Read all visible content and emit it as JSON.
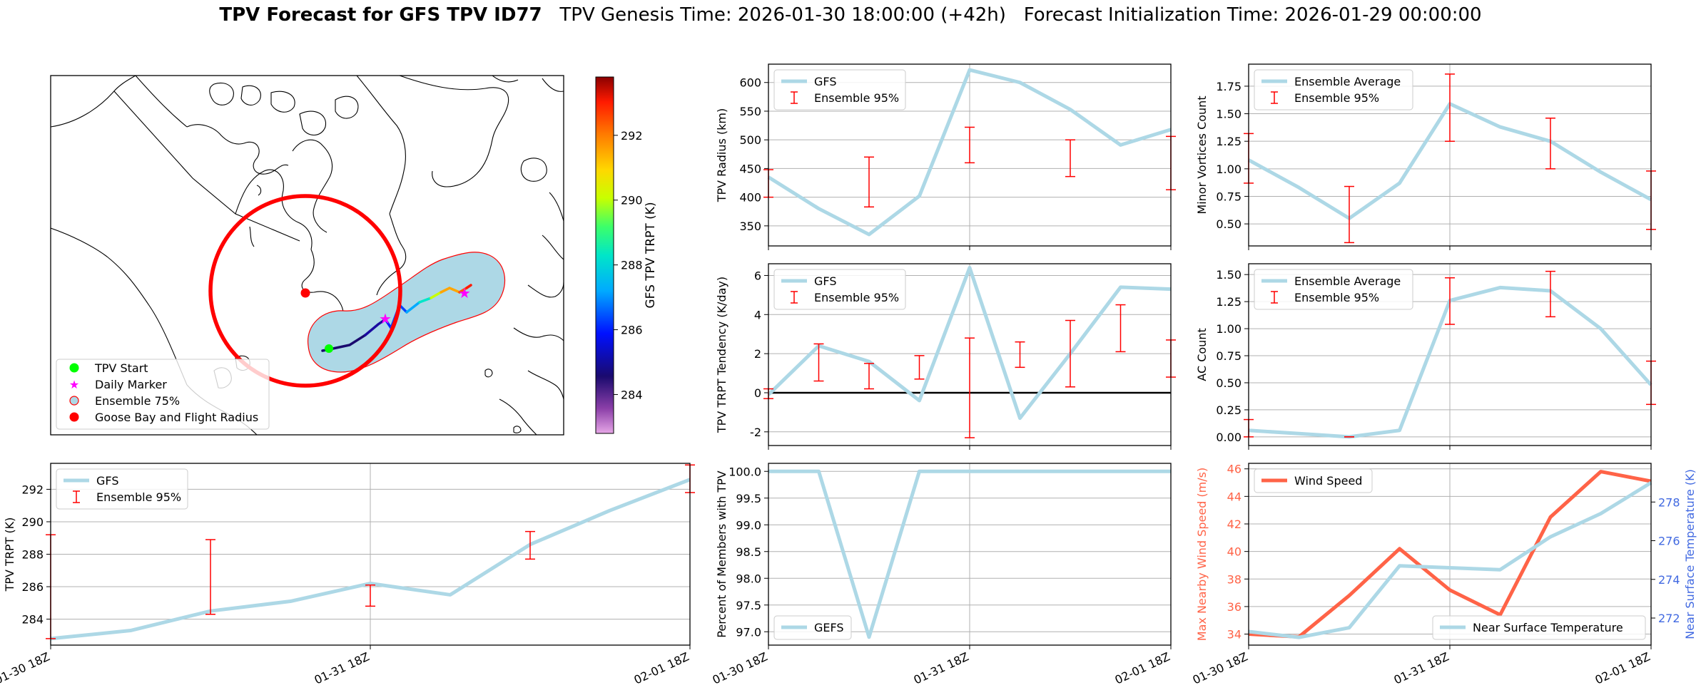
{
  "title": {
    "bold": "TPV Forecast for GFS TPV ID77",
    "rest": "TPV Genesis Time: 2026-01-30 18:00:00 (+42h)   Forecast Initialization Time: 2026-01-29 00:00:00"
  },
  "colors": {
    "line": "#add8e6",
    "error": "#ff0000",
    "wind": "#ff6347",
    "temp_axis": "#4169e1",
    "grid": "#b0b0b0"
  },
  "map": {
    "colorbar_label": "GFS TPV TRPT (K)",
    "colorbar_ticks": [
      284,
      286,
      288,
      290,
      292
    ],
    "colorbar_range": [
      282.8,
      293.8
    ],
    "legend": [
      {
        "label": "TPV Start",
        "marker": "dot",
        "color": "#00ff00"
      },
      {
        "label": "Daily Marker",
        "marker": "star",
        "color": "#ff00ff"
      },
      {
        "label": "Ensemble 75%",
        "marker": "ring",
        "color": "#add8e6"
      },
      {
        "label": "Goose Bay and Flight Radius",
        "marker": "dot",
        "color": "#ff0000"
      }
    ]
  },
  "chart_data": [
    {
      "id": "radius",
      "type": "line",
      "ylabel": "TPV Radius (km)",
      "ylim": [
        315,
        632
      ],
      "yticks": [
        350,
        400,
        450,
        500,
        550,
        600
      ],
      "legend": [
        "GFS",
        "Ensemble 95%"
      ],
      "series": [
        {
          "name": "GFS",
          "values": [
            435,
            380,
            335,
            402,
            622,
            600,
            553,
            491,
            518
          ]
        }
      ],
      "errorbars": [
        [
          0,
          400,
          448
        ],
        [
          2,
          383,
          470
        ],
        [
          4,
          460,
          522
        ],
        [
          6,
          436,
          500
        ],
        [
          8,
          413,
          506
        ]
      ]
    },
    {
      "id": "minor",
      "type": "line",
      "ylabel": "Minor Vortices Count",
      "ylim": [
        0.3,
        1.95
      ],
      "yticks": [
        0.5,
        0.75,
        1.0,
        1.25,
        1.5,
        1.75
      ],
      "ytick_labels": [
        "0.50",
        "0.75",
        "1.00",
        "1.25",
        "1.50",
        "1.75"
      ],
      "legend": [
        "Ensemble Average",
        "Ensemble 95%"
      ],
      "series": [
        {
          "name": "Ensemble Average",
          "values": [
            1.08,
            0.83,
            0.55,
            0.87,
            1.59,
            1.38,
            1.25,
            0.97,
            0.72
          ]
        }
      ],
      "errorbars": [
        [
          0,
          0.87,
          1.32
        ],
        [
          2,
          0.33,
          0.84
        ],
        [
          4,
          1.25,
          1.86
        ],
        [
          6,
          1.0,
          1.46
        ],
        [
          8,
          0.45,
          0.98
        ]
      ]
    },
    {
      "id": "tendency",
      "type": "line",
      "ylabel": "TPV TRPT Tendency (K/day)",
      "ylim": [
        -2.7,
        6.6
      ],
      "yticks": [
        -2,
        0,
        2,
        4,
        6
      ],
      "zero_line": true,
      "legend": [
        "GFS",
        "Ensemble 95%"
      ],
      "series": [
        {
          "name": "GFS",
          "values": [
            -0.1,
            2.4,
            1.6,
            -0.4,
            6.4,
            -1.3,
            2.0,
            5.4,
            5.3
          ]
        }
      ],
      "errorbars": [
        [
          0,
          -0.3,
          0.2
        ],
        [
          1,
          0.6,
          2.5
        ],
        [
          2,
          0.2,
          1.5
        ],
        [
          3,
          0.7,
          1.9
        ],
        [
          4,
          -2.3,
          2.8
        ],
        [
          5,
          1.3,
          2.6
        ],
        [
          6,
          0.3,
          3.7
        ],
        [
          7,
          2.1,
          4.5
        ],
        [
          8,
          0.8,
          2.7
        ]
      ]
    },
    {
      "id": "ac",
      "type": "line",
      "ylabel": "AC Count",
      "ylim": [
        -0.08,
        1.6
      ],
      "yticks": [
        0.0,
        0.25,
        0.5,
        0.75,
        1.0,
        1.25,
        1.5
      ],
      "ytick_labels": [
        "0.00",
        "0.25",
        "0.50",
        "0.75",
        "1.00",
        "1.25",
        "1.50"
      ],
      "legend": [
        "Ensemble Average",
        "Ensemble 95%"
      ],
      "series": [
        {
          "name": "Ensemble Average",
          "values": [
            0.06,
            0.03,
            0.0,
            0.06,
            1.26,
            1.38,
            1.35,
            1.0,
            0.48
          ]
        }
      ],
      "errorbars": [
        [
          0,
          0.0,
          0.16
        ],
        [
          2,
          0.0,
          0.0
        ],
        [
          4,
          1.04,
          1.47
        ],
        [
          6,
          1.11,
          1.53
        ],
        [
          8,
          0.3,
          0.7
        ]
      ]
    },
    {
      "id": "trpt",
      "type": "line",
      "ylabel": "TPV TRPT (K)",
      "ylim": [
        282.4,
        293.6
      ],
      "yticks": [
        284,
        286,
        288,
        290,
        292
      ],
      "legend": [
        "GFS",
        "Ensemble 95%"
      ],
      "series": [
        {
          "name": "GFS",
          "values": [
            282.8,
            283.3,
            284.5,
            285.1,
            286.2,
            285.5,
            288.6,
            290.7,
            292.6
          ]
        }
      ],
      "errorbars": [
        [
          0,
          282.8,
          289.2
        ],
        [
          2,
          284.3,
          288.9
        ],
        [
          4,
          284.8,
          286.1
        ],
        [
          6,
          287.7,
          289.4
        ],
        [
          8,
          291.8,
          293.5
        ]
      ]
    },
    {
      "id": "percent",
      "type": "line",
      "ylabel": "Percent of Members with TPV",
      "ylim": [
        96.75,
        100.15
      ],
      "yticks": [
        97.0,
        97.5,
        98.0,
        98.5,
        99.0,
        99.5,
        100.0
      ],
      "ytick_labels": [
        "97.0",
        "97.5",
        "98.0",
        "98.5",
        "99.0",
        "99.5",
        "100.0"
      ],
      "legend": [
        "GEFS"
      ],
      "series": [
        {
          "name": "GEFS",
          "values": [
            100.0,
            100.0,
            96.9,
            100.0,
            100.0,
            100.0,
            100.0,
            100.0,
            100.0
          ]
        }
      ]
    },
    {
      "id": "wind_temp",
      "type": "line",
      "ylabel": "Max Nearby Wind Speed (m/s)",
      "ylim": [
        33.2,
        46.4
      ],
      "yticks": [
        34,
        36,
        38,
        40,
        42,
        44,
        46
      ],
      "y2label": "Near Surface Temperature (K)",
      "y2lim": [
        270.6,
        280.0
      ],
      "y2ticks": [
        272,
        274,
        276,
        278
      ],
      "legend": [
        "Wind Speed"
      ],
      "legend2": [
        "Near Surface Temperature"
      ],
      "series": [
        {
          "name": "Wind Speed",
          "axis": "left",
          "values": [
            34.0,
            33.8,
            36.8,
            40.2,
            37.2,
            35.4,
            42.5,
            45.8,
            45.1
          ]
        },
        {
          "name": "Near Surface Temperature",
          "axis": "right",
          "values": [
            271.3,
            271.0,
            271.5,
            274.7,
            274.6,
            274.5,
            276.2,
            277.4,
            279.0
          ]
        }
      ]
    }
  ],
  "x_axis": {
    "points": 9,
    "tick_labels": [
      "01-30 18Z",
      "01-31 18Z",
      "02-01 18Z"
    ],
    "tick_index": [
      0,
      4,
      8
    ]
  }
}
